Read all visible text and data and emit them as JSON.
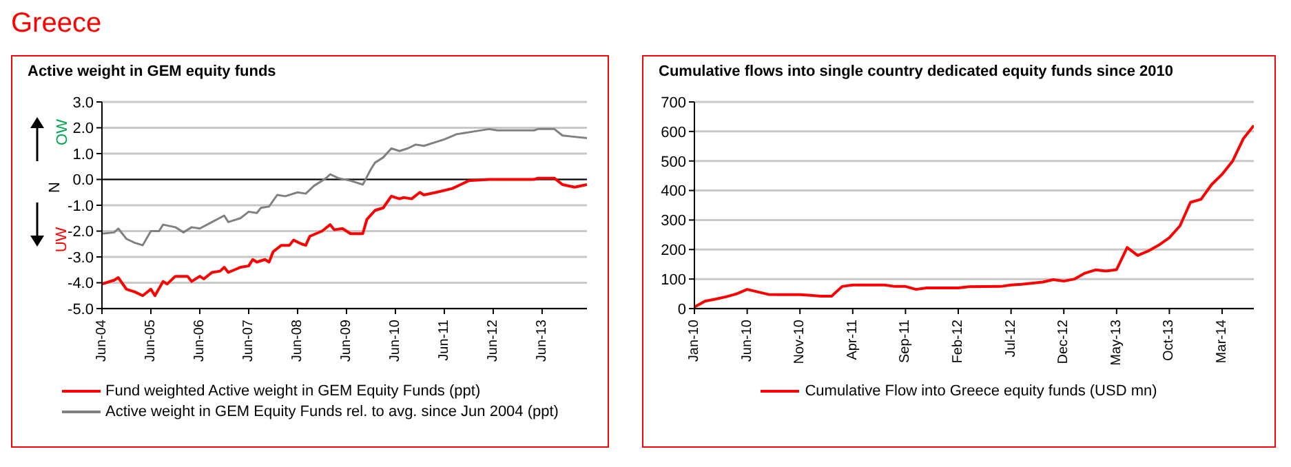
{
  "chart_data": [
    {
      "type": "line",
      "title": "Active weight in GEM equity funds",
      "annotations": [
        "Greece",
        "OW",
        "N",
        "UW"
      ],
      "xlim": [
        "2004-06",
        "2014-05"
      ],
      "xticks": [
        {
          "value": "2004-06",
          "label": "Jun-04"
        },
        {
          "value": "2005-06",
          "label": "Jun-05"
        },
        {
          "value": "2006-06",
          "label": "Jun-06"
        },
        {
          "value": "2007-06",
          "label": "Jun-07"
        },
        {
          "value": "2008-06",
          "label": "Jun-08"
        },
        {
          "value": "2009-06",
          "label": "Jun-09"
        },
        {
          "value": "2010-06",
          "label": "Jun-10"
        },
        {
          "value": "2011-06",
          "label": "Jun-11"
        },
        {
          "value": "2012-06",
          "label": "Jun-12"
        },
        {
          "value": "2013-06",
          "label": "Jun-13"
        }
      ],
      "ylim": [
        -5,
        3
      ],
      "yticks": [
        {
          "value": 3,
          "label": "3.0"
        },
        {
          "value": 2,
          "label": "2.0"
        },
        {
          "value": 1,
          "label": "1.0"
        },
        {
          "value": 0,
          "label": "0.0"
        },
        {
          "value": -1,
          "label": "-1.0"
        },
        {
          "value": -2,
          "label": "-2.0"
        },
        {
          "value": -3,
          "label": "-3.0"
        },
        {
          "value": -4,
          "label": "-4.0"
        },
        {
          "value": -5,
          "label": "-5.0"
        }
      ],
      "grid": "y",
      "legend": "bottom",
      "ref_lines": [
        {
          "axis": "y",
          "value": 0,
          "color": "#000000"
        }
      ],
      "series": [
        {
          "name": "Fund weighted Active weight in GEM Equity Funds (ppt)",
          "color": "#ff0000",
          "x": [
            "2004-06",
            "2004-09",
            "2004-10",
            "2004-12",
            "2005-02",
            "2005-04",
            "2005-06",
            "2005-07",
            "2005-09",
            "2005-10",
            "2005-12",
            "2006-03",
            "2006-04",
            "2006-06",
            "2006-07",
            "2006-09",
            "2006-11",
            "2006-12",
            "2007-01",
            "2007-04",
            "2007-06",
            "2007-07",
            "2007-08",
            "2007-10",
            "2007-11",
            "2007-12",
            "2008-02",
            "2008-04",
            "2008-05",
            "2008-07",
            "2008-08",
            "2008-09",
            "2008-12",
            "2009-02",
            "2009-03",
            "2009-05",
            "2009-07",
            "2009-10",
            "2009-11",
            "2010-01",
            "2010-03",
            "2010-05",
            "2010-07",
            "2010-08",
            "2010-10",
            "2010-12",
            "2011-01",
            "2011-04",
            "2011-08",
            "2011-10",
            "2011-12",
            "2012-05",
            "2012-11",
            "2013-04",
            "2013-05",
            "2013-09",
            "2013-11",
            "2014-02",
            "2014-05"
          ],
          "values": [
            -4.05,
            -3.9,
            -3.8,
            -4.25,
            -4.35,
            -4.5,
            -4.25,
            -4.5,
            -3.95,
            -4.05,
            -3.75,
            -3.75,
            -3.95,
            -3.75,
            -3.85,
            -3.6,
            -3.55,
            -3.4,
            -3.6,
            -3.4,
            -3.35,
            -3.1,
            -3.2,
            -3.1,
            -3.2,
            -2.8,
            -2.55,
            -2.55,
            -2.35,
            -2.5,
            -2.55,
            -2.2,
            -2.0,
            -1.75,
            -1.95,
            -1.9,
            -2.1,
            -2.1,
            -1.55,
            -1.2,
            -1.1,
            -0.65,
            -0.75,
            -0.7,
            -0.75,
            -0.5,
            -0.6,
            -0.5,
            -0.35,
            -0.2,
            -0.05,
            0.0,
            0.0,
            0.0,
            0.05,
            0.05,
            -0.2,
            -0.3,
            -0.2
          ]
        },
        {
          "name": "Active weight in GEM Equity Funds rel. to avg. since Jun 2004 (ppt)",
          "color": "#808080",
          "x": [
            "2004-06",
            "2004-09",
            "2004-10",
            "2004-12",
            "2005-02",
            "2005-04",
            "2005-06",
            "2005-08",
            "2005-09",
            "2005-12",
            "2006-02",
            "2006-04",
            "2006-06",
            "2006-09",
            "2006-12",
            "2007-01",
            "2007-04",
            "2007-06",
            "2007-08",
            "2007-09",
            "2007-11",
            "2008-01",
            "2008-03",
            "2008-06",
            "2008-08",
            "2008-10",
            "2009-01",
            "2009-02",
            "2009-04",
            "2009-07",
            "2009-10",
            "2009-12",
            "2010-01",
            "2010-03",
            "2010-05",
            "2010-07",
            "2010-09",
            "2010-11",
            "2011-01",
            "2011-04",
            "2011-06",
            "2011-09",
            "2011-11",
            "2012-01",
            "2012-05",
            "2012-07",
            "2012-11",
            "2013-04",
            "2013-05",
            "2013-09",
            "2013-11",
            "2014-02",
            "2014-05"
          ],
          "values": [
            -2.1,
            -2.05,
            -1.9,
            -2.3,
            -2.45,
            -2.55,
            -2.0,
            -2.0,
            -1.75,
            -1.85,
            -2.05,
            -1.85,
            -1.9,
            -1.65,
            -1.4,
            -1.65,
            -1.5,
            -1.25,
            -1.3,
            -1.1,
            -1.05,
            -0.6,
            -0.65,
            -0.5,
            -0.55,
            -0.25,
            0.05,
            0.2,
            0.05,
            -0.05,
            -0.2,
            0.4,
            0.65,
            0.85,
            1.2,
            1.1,
            1.2,
            1.35,
            1.3,
            1.45,
            1.55,
            1.75,
            1.8,
            1.85,
            1.95,
            1.9,
            1.9,
            1.9,
            1.95,
            1.95,
            1.7,
            1.65,
            1.6
          ]
        }
      ]
    },
    {
      "type": "line",
      "title": "Cumulative flows into single country dedicated equity funds since 2010",
      "xlim": [
        "2010-01",
        "2014-06"
      ],
      "xticks": [
        {
          "value": "2010-01",
          "label": "Jan-10"
        },
        {
          "value": "2010-06",
          "label": "Jun-10"
        },
        {
          "value": "2010-11",
          "label": "Nov-10"
        },
        {
          "value": "2011-04",
          "label": "Apr-11"
        },
        {
          "value": "2011-09",
          "label": "Sep-11"
        },
        {
          "value": "2012-02",
          "label": "Feb-12"
        },
        {
          "value": "2012-07",
          "label": "Jul-12"
        },
        {
          "value": "2012-12",
          "label": "Dec-12"
        },
        {
          "value": "2013-05",
          "label": "May-13"
        },
        {
          "value": "2013-10",
          "label": "Oct-13"
        },
        {
          "value": "2014-03",
          "label": "Mar-14"
        }
      ],
      "ylim": [
        0,
        700
      ],
      "yticks": [
        0,
        100,
        200,
        300,
        400,
        500,
        600,
        700
      ],
      "grid": "y",
      "legend": "bottom",
      "series": [
        {
          "name": "Cumulative Flow into Greece equity funds (USD mn)",
          "color": "#ff0000",
          "x": [
            "2010-01",
            "2010-02",
            "2010-03",
            "2010-04",
            "2010-05",
            "2010-06",
            "2010-08",
            "2010-09",
            "2010-11",
            "2010-12",
            "2011-01",
            "2011-02",
            "2011-03",
            "2011-04",
            "2011-07",
            "2011-08",
            "2011-09",
            "2011-10",
            "2011-11",
            "2012-02",
            "2012-03",
            "2012-06",
            "2012-07",
            "2012-08",
            "2012-10",
            "2012-11",
            "2012-12",
            "2013-01",
            "2013-02",
            "2013-03",
            "2013-04",
            "2013-05",
            "2013-06",
            "2013-07",
            "2013-08",
            "2013-09",
            "2013-10",
            "2013-11",
            "2013-12",
            "2014-01",
            "2014-02",
            "2014-03",
            "2014-04",
            "2014-05",
            "2014-06"
          ],
          "values": [
            5,
            25,
            32,
            40,
            50,
            65,
            48,
            47,
            47,
            45,
            42,
            42,
            75,
            80,
            80,
            75,
            75,
            65,
            70,
            70,
            74,
            75,
            80,
            82,
            90,
            98,
            93,
            100,
            120,
            131,
            127,
            132,
            207,
            180,
            195,
            215,
            240,
            280,
            360,
            370,
            420,
            455,
            500,
            575,
            620
          ]
        }
      ]
    }
  ]
}
